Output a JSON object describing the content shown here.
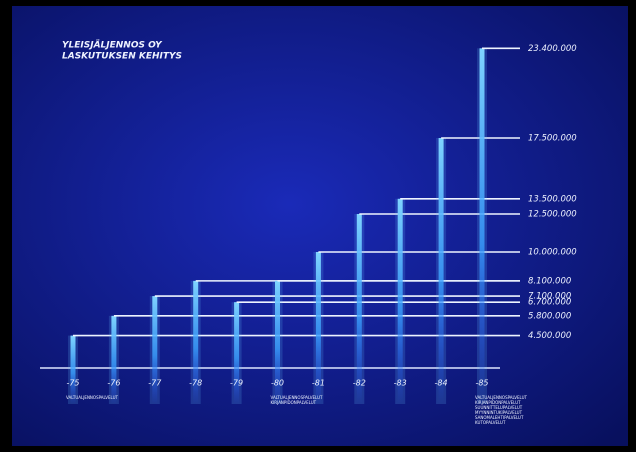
{
  "chart_data": {
    "type": "bar",
    "title": "YLEISJÄLJENNOS OY",
    "subtitle": "LASKUTUKSEN KEHITYS",
    "categories": [
      "-75",
      "-76",
      "-77",
      "-78",
      "-79",
      "-80",
      "-81",
      "-82",
      "-83",
      "-84",
      "-85"
    ],
    "values": [
      4500000,
      5800000,
      7100000,
      8100000,
      6700000,
      8100000,
      10000000,
      12500000,
      13500000,
      17500000,
      23400000
    ],
    "value_labels": [
      "4.500.000",
      "5.800.000",
      "7.100.000",
      "8.100.000",
      "6.700.000",
      null,
      "10.000.000",
      "12.500.000",
      "13.500.000",
      "17.500.000",
      "23.400.000"
    ],
    "color": "#6cc8ff",
    "ylim": [
      0,
      25000000
    ],
    "notes": [
      {
        "category": 0,
        "lines": [
          "VALTUALJENNOSPALVELUT"
        ]
      },
      {
        "category": 5,
        "lines": [
          "VALTUALJENNOSPALVELUT",
          "KIRJANPIDONPALVELUT"
        ]
      },
      {
        "category": 10,
        "lines": [
          "VALTUALJENNOSPALVELUT",
          "KIRJANPIDONPALVELUT",
          "SUUNNITTELUPALVELUT",
          "MYYNNINTUKIPALVELUT",
          "SANOMALEHTIPALVELUT",
          "KUTOPALVELUT"
        ]
      }
    ]
  }
}
